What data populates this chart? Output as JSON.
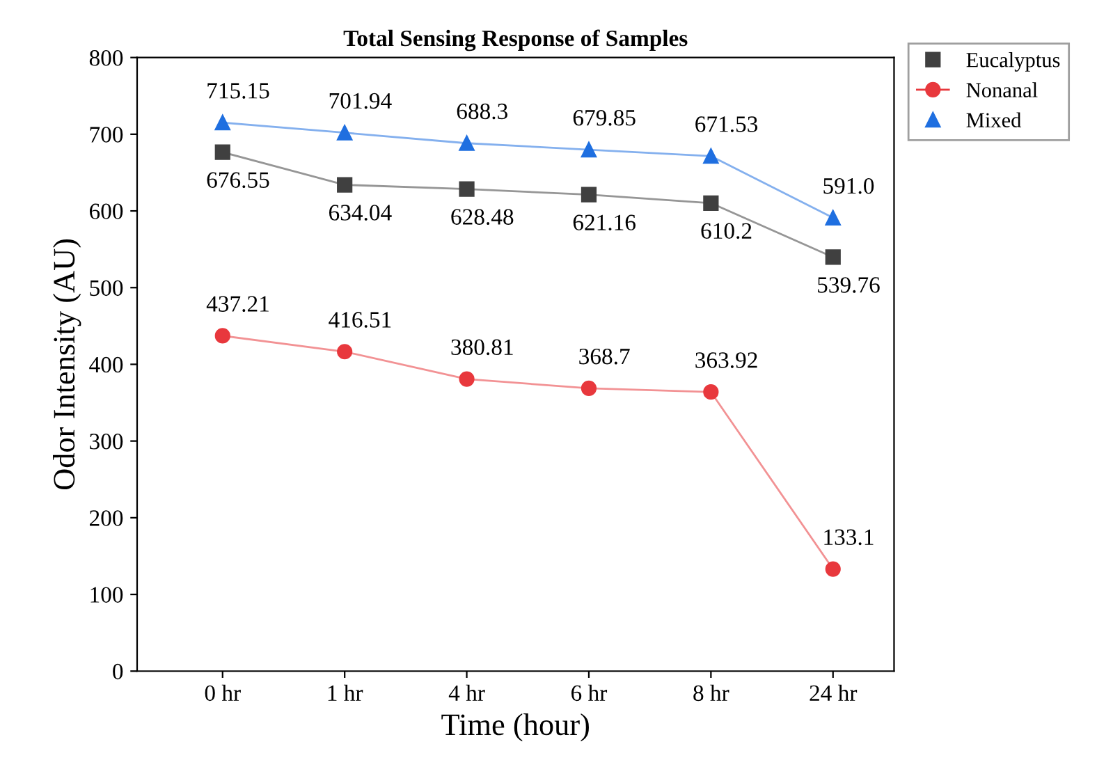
{
  "chart_data": {
    "type": "line",
    "title": "Total Sensing Response of Samples",
    "xlabel": "Time (hour)",
    "ylabel": "Odor Intensity (AU)",
    "categories": [
      "0 hr",
      "1 hr",
      "4 hr",
      "6 hr",
      "8 hr",
      "24 hr"
    ],
    "ylim": [
      0,
      800
    ],
    "yticks": [
      0,
      100,
      200,
      300,
      400,
      500,
      600,
      700,
      800
    ],
    "grid": false,
    "legend": "top right",
    "series": [
      {
        "name": "Eucalyptus",
        "color": "#404040",
        "marker": "square",
        "values": [
          676.55,
          634.04,
          628.48,
          621.16,
          610.2,
          539.76
        ],
        "value_labels": [
          "676.55",
          "634.04",
          "628.48",
          "621.16",
          "610.2",
          "539.76"
        ]
      },
      {
        "name": "Nonanal",
        "color": "#e8383d",
        "marker": "circle",
        "values": [
          437.21,
          416.51,
          380.81,
          368.7,
          363.92,
          133.1
        ],
        "value_labels": [
          "437.21",
          "416.51",
          "380.81",
          "368.7",
          "363.92",
          "133.1"
        ]
      },
      {
        "name": "Mixed",
        "color": "#1f6fe0",
        "marker": "triangle",
        "values": [
          715.15,
          701.94,
          688.3,
          679.85,
          671.53,
          591.0
        ],
        "value_labels": [
          "715.15",
          "701.94",
          "688.3",
          "679.85",
          "671.53",
          "591.0"
        ]
      }
    ]
  }
}
